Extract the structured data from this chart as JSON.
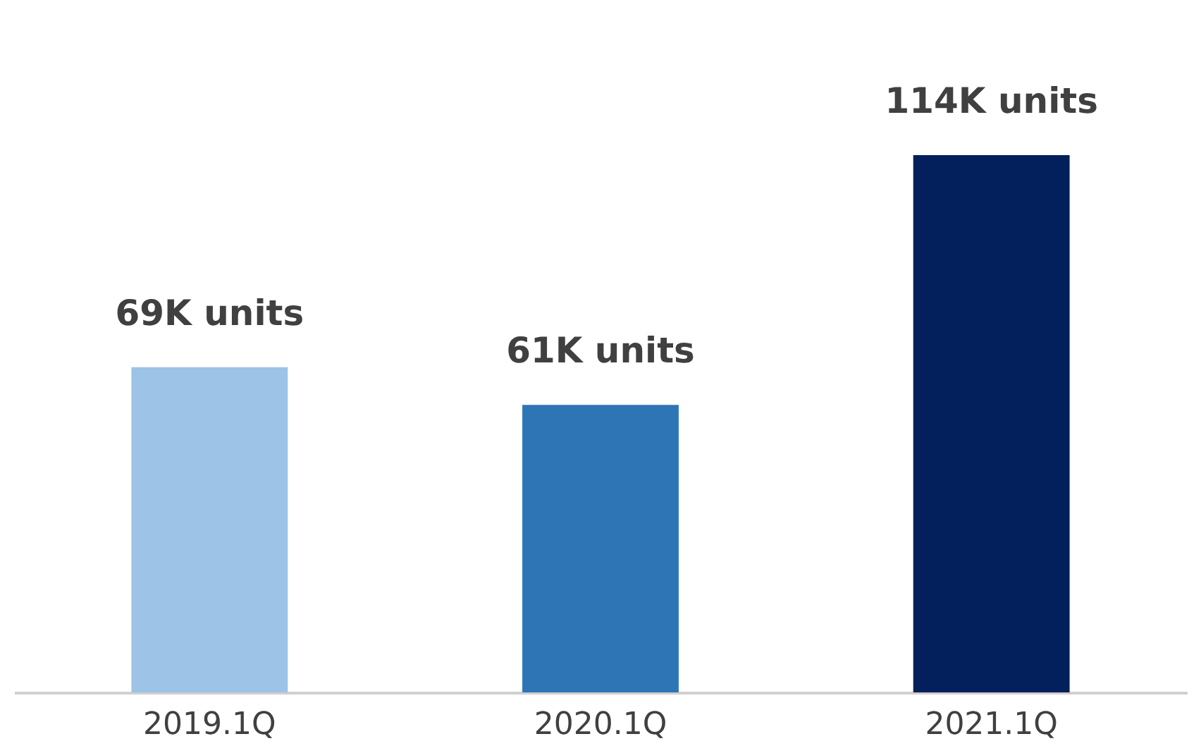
{
  "chart_data": {
    "type": "bar",
    "categories": [
      "2019.1Q",
      "2020.1Q",
      "2021.1Q"
    ],
    "values": [
      69,
      61,
      114
    ],
    "colors": [
      "#9dc3e6",
      "#2e75b6",
      "#031f5c"
    ],
    "value_labels": [
      "69K units",
      "61K units",
      "114K units"
    ]
  }
}
